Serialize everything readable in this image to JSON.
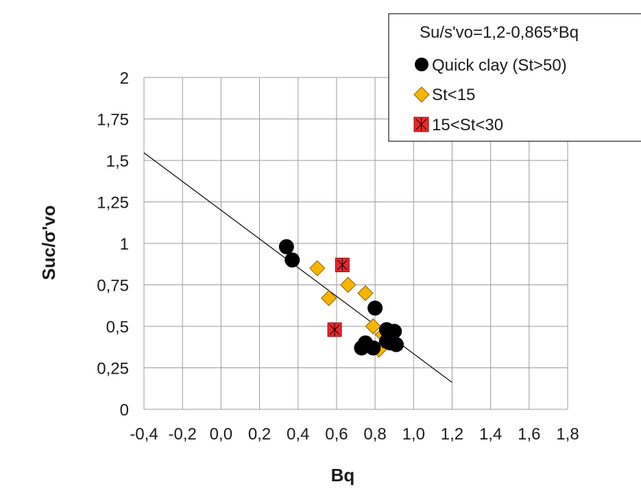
{
  "chart_data": {
    "type": "scatter",
    "xlabel": "Bq",
    "ylabel": "Suc/σ'vo",
    "xlim": [
      -0.4,
      1.8
    ],
    "ylim": [
      0,
      2
    ],
    "xticks": [
      -0.4,
      -0.2,
      0.0,
      0.2,
      0.4,
      0.6,
      0.8,
      1.0,
      1.2,
      1.4,
      1.6,
      1.8
    ],
    "xtick_labels": [
      "-0,4",
      "-0,2",
      "0,0",
      "0,2",
      "0,4",
      "0,6",
      "0,8",
      "1,0",
      "1,2",
      "1,4",
      "1,6",
      "1,8"
    ],
    "yticks": [
      0,
      0.25,
      0.5,
      0.75,
      1,
      1.25,
      1.5,
      1.75,
      2
    ],
    "ytick_labels": [
      "0",
      "0,25",
      "0,5",
      "0,75",
      "1",
      "1,25",
      "1,5",
      "1,75",
      "2"
    ],
    "grid": true,
    "legend_position": "top-right",
    "fit_line": {
      "label": "Su/s'vo=1,2-0,865*Bq",
      "intercept": 1.2,
      "slope": -0.865,
      "x_range": [
        -0.4,
        1.2
      ],
      "color": "#000000"
    },
    "series": [
      {
        "name": "Quick clay (St>50)",
        "marker": "circle",
        "color": "#000000",
        "points": [
          [
            0.34,
            0.98
          ],
          [
            0.37,
            0.9
          ],
          [
            0.8,
            0.61
          ],
          [
            0.73,
            0.37
          ],
          [
            0.75,
            0.4
          ],
          [
            0.79,
            0.37
          ],
          [
            0.86,
            0.48
          ],
          [
            0.87,
            0.43
          ],
          [
            0.86,
            0.41
          ],
          [
            0.9,
            0.47
          ],
          [
            0.88,
            0.4
          ],
          [
            0.91,
            0.39
          ]
        ]
      },
      {
        "name": "St<15",
        "marker": "diamond",
        "color": "#f5b400",
        "points": [
          [
            0.5,
            0.85
          ],
          [
            0.66,
            0.75
          ],
          [
            0.56,
            0.67
          ],
          [
            0.75,
            0.7
          ],
          [
            0.79,
            0.5
          ],
          [
            0.84,
            0.45
          ],
          [
            0.82,
            0.36
          ]
        ]
      },
      {
        "name": "15<St<30",
        "marker": "square-cross",
        "color": "#e8282d",
        "points": [
          [
            0.63,
            0.87
          ],
          [
            0.59,
            0.48
          ]
        ]
      }
    ]
  }
}
